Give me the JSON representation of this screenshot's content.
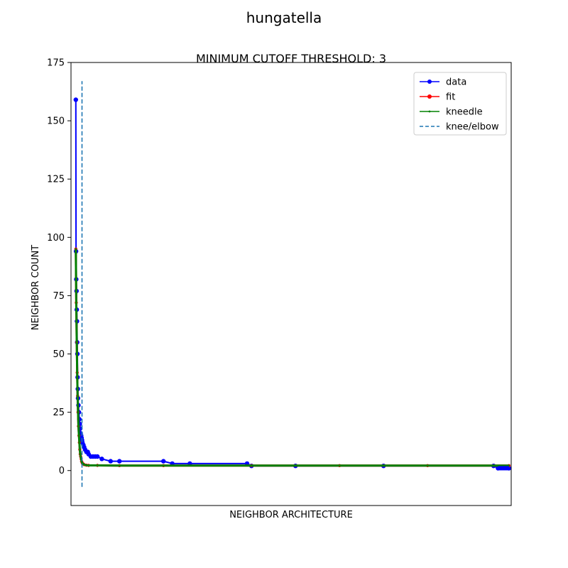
{
  "figure": {
    "suptitle": "hungatella"
  },
  "chart_data": {
    "type": "line",
    "title": "MINIMUM CUTOFF THRESHOLD: 3",
    "xlabel": "NEIGHBOR ARCHITECTURE",
    "ylabel": "NEIGHBOR COUNT",
    "xlim": [
      -10,
      990
    ],
    "ylim": [
      -15,
      175
    ],
    "yticks": [
      0,
      25,
      50,
      75,
      100,
      125,
      150,
      175
    ],
    "xticks_visible": false,
    "grid": false,
    "legend_position": "top-right",
    "knee_x": 15,
    "knee_ylim": [
      -7,
      167
    ],
    "series": [
      {
        "name": "data",
        "color": "#0000ff",
        "marker": "circle",
        "x": [
          1,
          1.5,
          2,
          2.5,
          3,
          3.5,
          4,
          4.5,
          5,
          5.5,
          6,
          7,
          8,
          9,
          10,
          11,
          12,
          13,
          14,
          15,
          16,
          18,
          20,
          22,
          25,
          28,
          30,
          35,
          40,
          45,
          50,
          60,
          80,
          100,
          200,
          220,
          260,
          390,
          400,
          500,
          700,
          950,
          960,
          985
        ],
        "y": [
          159,
          94,
          82,
          77,
          69,
          64,
          55,
          50,
          40,
          35,
          31,
          28,
          25,
          22,
          20,
          18,
          16,
          15,
          14,
          13,
          12,
          11,
          10,
          9,
          8,
          8,
          7,
          6,
          6,
          6,
          6,
          5,
          4,
          4,
          4,
          3,
          3,
          3,
          2,
          2,
          2,
          2,
          1,
          1
        ]
      },
      {
        "name": "fit",
        "color": "#ff0000",
        "marker": "circle",
        "x": [
          1,
          2,
          3,
          4,
          5,
          6,
          7,
          8,
          9,
          10,
          11,
          12,
          13,
          14,
          15,
          16,
          18,
          20,
          25,
          30,
          50,
          100,
          200,
          400,
          600,
          800,
          985
        ],
        "y": [
          95,
          72,
          55,
          42,
          32,
          25,
          19,
          15,
          12,
          9,
          7,
          6,
          5,
          4,
          3.5,
          3,
          2.8,
          2.5,
          2.3,
          2.2,
          2.2,
          2.1,
          2.1,
          2.1,
          2.1,
          2.1,
          2.1
        ]
      },
      {
        "name": "kneedle",
        "color": "#008000",
        "marker": "point",
        "x": [
          1,
          2,
          3,
          4,
          5,
          6,
          7,
          8,
          9,
          10,
          11,
          12,
          13,
          14,
          15,
          16,
          18,
          20,
          25,
          30,
          50,
          100,
          200,
          400,
          600,
          800,
          985
        ],
        "y": [
          95,
          72,
          55,
          42,
          32,
          25,
          19,
          15,
          12,
          9,
          7,
          6,
          5,
          4,
          3.5,
          3,
          2.8,
          2.5,
          2.3,
          2.2,
          2.2,
          2.1,
          2.1,
          2.1,
          2.1,
          2.1,
          2.1
        ]
      },
      {
        "name": "knee/elbow",
        "color": "#1f77b4",
        "marker": "dashed"
      }
    ]
  }
}
